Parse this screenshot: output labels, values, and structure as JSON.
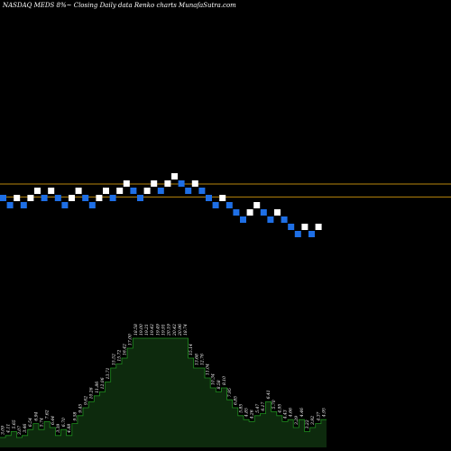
{
  "header": {
    "title": "NASDAQ MEDS 8%~  Closing Daily data  Renko  charts MunafaSutra.com"
  },
  "colors": {
    "background": "#000000",
    "up_brick": "#ffffff",
    "down_brick": "#1e6fe6",
    "reference_line": "#b8860b",
    "volume_fill": "#0d2a0d",
    "volume_line": "#1f8f1f"
  },
  "chart_data": [
    {
      "type": "renko",
      "reference_lines": [
        4.1,
        3.74
      ],
      "ylim": [
        -4.0,
        7.0
      ],
      "bricks": [
        {
          "dir": "down",
          "value": 3.8
        },
        {
          "dir": "down",
          "value": 3.6
        },
        {
          "dir": "up",
          "value": 3.8
        },
        {
          "dir": "down",
          "value": 3.6
        },
        {
          "dir": "up",
          "value": 3.8
        },
        {
          "dir": "up",
          "value": 4.0
        },
        {
          "dir": "down",
          "value": 3.8
        },
        {
          "dir": "up",
          "value": 4.0
        },
        {
          "dir": "down",
          "value": 3.8
        },
        {
          "dir": "down",
          "value": 3.6
        },
        {
          "dir": "up",
          "value": 3.8
        },
        {
          "dir": "up",
          "value": 4.0
        },
        {
          "dir": "down",
          "value": 3.8
        },
        {
          "dir": "down",
          "value": 3.6
        },
        {
          "dir": "up",
          "value": 3.8
        },
        {
          "dir": "up",
          "value": 4.0
        },
        {
          "dir": "down",
          "value": 3.8
        },
        {
          "dir": "up",
          "value": 4.0
        },
        {
          "dir": "up",
          "value": 4.2
        },
        {
          "dir": "down",
          "value": 4.0
        },
        {
          "dir": "down",
          "value": 3.8
        },
        {
          "dir": "up",
          "value": 4.0
        },
        {
          "dir": "up",
          "value": 4.2
        },
        {
          "dir": "down",
          "value": 4.0
        },
        {
          "dir": "up",
          "value": 4.2
        },
        {
          "dir": "up",
          "value": 4.4
        },
        {
          "dir": "down",
          "value": 4.2
        },
        {
          "dir": "down",
          "value": 4.0
        },
        {
          "dir": "up",
          "value": 4.2
        },
        {
          "dir": "down",
          "value": 4.0
        },
        {
          "dir": "down",
          "value": 3.8
        },
        {
          "dir": "down",
          "value": 3.6
        },
        {
          "dir": "up",
          "value": 3.8
        },
        {
          "dir": "down",
          "value": 3.6
        },
        {
          "dir": "down",
          "value": 3.4
        },
        {
          "dir": "down",
          "value": 3.2
        },
        {
          "dir": "up",
          "value": 3.4
        },
        {
          "dir": "up",
          "value": 3.6
        },
        {
          "dir": "down",
          "value": 3.4
        },
        {
          "dir": "down",
          "value": 3.2
        },
        {
          "dir": "up",
          "value": 3.4
        },
        {
          "dir": "down",
          "value": 3.2
        },
        {
          "dir": "down",
          "value": 3.0
        },
        {
          "dir": "down",
          "value": 2.8
        },
        {
          "dir": "up",
          "value": 3.0
        },
        {
          "dir": "down",
          "value": 2.8
        },
        {
          "dir": "up",
          "value": 3.0
        }
      ]
    },
    {
      "type": "area",
      "values": [
        0.05,
        0.06,
        0.08,
        0.05,
        0.06,
        0.09,
        0.12,
        0.09,
        0.13,
        0.1,
        0.06,
        0.09,
        0.06,
        0.12,
        0.16,
        0.2,
        0.23,
        0.26,
        0.28,
        0.33,
        0.4,
        0.42,
        0.45,
        0.5,
        0.55,
        0.55,
        0.55,
        0.55,
        0.55,
        0.55,
        0.55,
        0.55,
        0.55,
        0.55,
        0.45,
        0.4,
        0.4,
        0.35,
        0.3,
        0.28,
        0.3,
        0.24,
        0.2,
        0.16,
        0.14,
        0.13,
        0.16,
        0.17,
        0.23,
        0.18,
        0.16,
        0.13,
        0.14,
        0.1,
        0.14,
        0.08,
        0.1,
        0.12,
        0.14
      ],
      "labels": [
        "3.09",
        "4.11",
        "5.65",
        "3.07",
        "3.46",
        "6.54",
        "6.94",
        "5.74",
        "7.62",
        "6.44",
        "3.39",
        "6.70",
        "4.88",
        "9.58",
        "9.45",
        "9.62",
        "10.26",
        "11.86",
        "12.06",
        "13.71",
        "15.52",
        "15.72",
        "16.42",
        "17.00",
        "18.58",
        "19.00",
        "19.21",
        "19.42",
        "19.49",
        "19.91",
        "20.19",
        "20.42",
        "20.96",
        "18.74",
        "15.14",
        "13.68",
        "12.76",
        "11.04",
        "10.34",
        "8.58",
        "8.10",
        "7.95",
        "6.85",
        "5.85",
        "4.85",
        "4.26",
        "5.47",
        "6.17",
        "6.41",
        "5.70",
        "4.95",
        "4.43",
        "4.66",
        "3.29",
        "4.46",
        "3.22",
        "3.92",
        "4.37",
        "4.95"
      ]
    }
  ]
}
